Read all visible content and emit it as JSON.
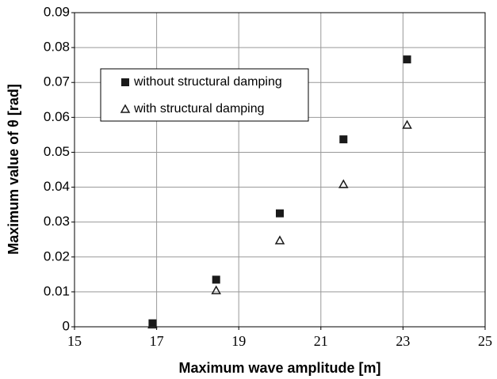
{
  "chart_data": {
    "type": "scatter",
    "xlabel": "Maximum wave amplitude [m]",
    "ylabel": "Maximum value of θ  [rad]",
    "xlim": [
      15,
      25
    ],
    "xticks": [
      15,
      17,
      19,
      21,
      23,
      25
    ],
    "ylim": [
      0,
      0.09
    ],
    "yticks": [
      0,
      0.01,
      0.02,
      0.03,
      0.04,
      0.05,
      0.06,
      0.07,
      0.08,
      0.09
    ],
    "grid": true,
    "legend": "upper left",
    "series": [
      {
        "name": "without structural damping",
        "color": "#1a1a1a",
        "marker": "square",
        "x": [
          16.9,
          18.45,
          20,
          21.55,
          23.1
        ],
        "values": [
          0.001,
          0.0135,
          0.0325,
          0.0537,
          0.0766
        ]
      },
      {
        "name": "with structural damping",
        "color": "#1a1a1a",
        "marker": "triangle-open",
        "x": [
          16.9,
          18.45,
          20,
          21.55,
          23.1
        ],
        "values": [
          0.0006,
          0.0104,
          0.0247,
          0.0408,
          0.0578
        ]
      }
    ]
  }
}
